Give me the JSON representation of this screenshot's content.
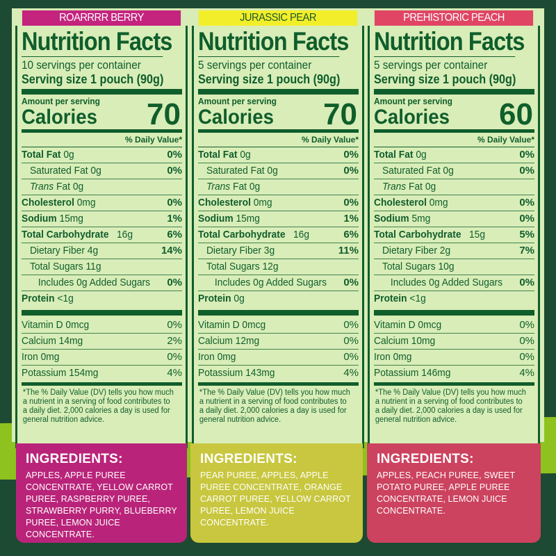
{
  "colors": {
    "background": "#1d4a32",
    "accent_lime": "#8ec21f",
    "label_bg": "#d9edb8",
    "label_text": "#0f5e2c"
  },
  "panels": [
    {
      "flavor": "ROARRRR BERRY",
      "flavor_bg": "#c4237e",
      "flavor_color": "#ffffff",
      "title": "Nutrition Facts",
      "servings": "10 servings per container",
      "serving_size": "Serving size 1 pouch (90g)",
      "amount_label": "Amount per serving",
      "calories_label": "Calories",
      "calories": "70",
      "dv_header": "% Daily Value*",
      "total_fat": {
        "label": "Total Fat",
        "amount": "0g",
        "dv": "0%"
      },
      "sat_fat": {
        "label": "Saturated Fat 0g",
        "dv": "0%"
      },
      "trans_fat": {
        "label_italic": "Trans",
        "label_rest": " Fat 0g"
      },
      "cholesterol": {
        "label": "Cholesterol",
        "amount": "0mg",
        "dv": "0%"
      },
      "sodium": {
        "label": "Sodium",
        "amount": "15mg",
        "dv": "1%"
      },
      "carbs": {
        "label": "Total Carbohydrate",
        "amount": "16g",
        "dv": "6%"
      },
      "fiber": {
        "label": "Dietary Fiber 4g",
        "dv": "14%"
      },
      "sugars": {
        "label": "Total Sugars 11g"
      },
      "added_sugars": {
        "label": "Includes 0g Added Sugars",
        "dv": "0%"
      },
      "protein": {
        "label": "Protein",
        "amount": "<1g"
      },
      "vitamin_d": {
        "label": "Vitamin D 0mcg",
        "dv": "0%"
      },
      "calcium": {
        "label": "Calcium 14mg",
        "dv": "2%"
      },
      "iron": {
        "label": "Iron 0mg",
        "dv": "0%"
      },
      "potassium": {
        "label": "Potassium 154mg",
        "dv": "4%"
      },
      "footnote": "*The % Daily Value (DV) tells you how much a nutrient in a serving of food contributes to a daily diet. 2,000 calories a day is used for general nutrition advice.",
      "ingredients_title": "INGREDIENTS:",
      "ingredients": "APPLES, APPLE PUREE CONCENTRATE, YELLOW CARROT PUREE, RASPBERRY PUREE, STRAWBERRY PURRY, BLUEBERRY PUREE, LEMON JUICE CONCENTRATE."
    },
    {
      "flavor": "JURASSIC PEAR",
      "flavor_bg": "#f3ee2a",
      "flavor_color": "#1d5a2a",
      "title": "Nutrition Facts",
      "servings": "5 servings per container",
      "serving_size": "Serving size 1 pouch (90g)",
      "amount_label": "Amount per serving",
      "calories_label": "Calories",
      "calories": "70",
      "dv_header": "% Daily Value*",
      "total_fat": {
        "label": "Total Fat",
        "amount": "0g",
        "dv": "0%"
      },
      "sat_fat": {
        "label": "Saturated Fat 0g",
        "dv": "0%"
      },
      "trans_fat": {
        "label_italic": "Trans",
        "label_rest": " Fat 0g"
      },
      "cholesterol": {
        "label": "Cholesterol",
        "amount": "0mg",
        "dv": "0%"
      },
      "sodium": {
        "label": "Sodium",
        "amount": "15mg",
        "dv": "1%"
      },
      "carbs": {
        "label": "Total Carbohydrate",
        "amount": "16g",
        "dv": "6%"
      },
      "fiber": {
        "label": "Dietary Fiber 3g",
        "dv": "11%"
      },
      "sugars": {
        "label": "Total Sugars 12g"
      },
      "added_sugars": {
        "label": "Includes 0g Added Sugars",
        "dv": "0%"
      },
      "protein": {
        "label": "Protein",
        "amount": "0g"
      },
      "vitamin_d": {
        "label": "Vitamin D 0mcg",
        "dv": "0%"
      },
      "calcium": {
        "label": "Calcium 12mg",
        "dv": "0%"
      },
      "iron": {
        "label": "Iron 0mg",
        "dv": "0%"
      },
      "potassium": {
        "label": "Potassium 143mg",
        "dv": "4%"
      },
      "footnote": "*The % Daily Value (DV) tells you how much a nutrient in a serving of food contributes to a daily diet. 2,000 calories a day is used for general nutrition advice.",
      "ingredients_title": "INGREDIENTS:",
      "ingredients": "PEAR PUREE, APPLES, APPLE PUREE CONCENTRATE, ORANGE CARROT PUREE, YELLOW CARROT PUREE, LEMON JUICE CONCENTRATE."
    },
    {
      "flavor": "PREHISTORIC PEACH",
      "flavor_bg": "#e04564",
      "flavor_color": "#ffffff",
      "title": "Nutrition Facts",
      "servings": "5 servings per container",
      "serving_size": "Serving size 1 pouch (90g)",
      "amount_label": "Amount per serving",
      "calories_label": "Calories",
      "calories": "60",
      "dv_header": "% Daily Value*",
      "total_fat": {
        "label": "Total Fat",
        "amount": "0g",
        "dv": "0%"
      },
      "sat_fat": {
        "label": "Saturated Fat 0g",
        "dv": "0%"
      },
      "trans_fat": {
        "label_italic": "Trans",
        "label_rest": " Fat 0g"
      },
      "cholesterol": {
        "label": "Cholesterol",
        "amount": "0mg",
        "dv": "0%"
      },
      "sodium": {
        "label": "Sodium",
        "amount": "5mg",
        "dv": "0%"
      },
      "carbs": {
        "label": "Total Carbohydrate",
        "amount": "15g",
        "dv": "5%"
      },
      "fiber": {
        "label": "Dietary Fiber 2g",
        "dv": "7%"
      },
      "sugars": {
        "label": "Total Sugars 10g"
      },
      "added_sugars": {
        "label": "Includes 0g Added Sugars",
        "dv": "0%"
      },
      "protein": {
        "label": "Protein",
        "amount": "<1g"
      },
      "vitamin_d": {
        "label": "Vitamin D 0mcg",
        "dv": "0%"
      },
      "calcium": {
        "label": "Calcium 10mg",
        "dv": "0%"
      },
      "iron": {
        "label": "Iron 0mg",
        "dv": "0%"
      },
      "potassium": {
        "label": "Potassium 146mg",
        "dv": "4%"
      },
      "footnote": "*The % Daily Value (DV) tells you how much a nutrient in a serving of food contributes to a daily diet. 2,000 calories a day is used for general nutrition advice.",
      "ingredients_title": "INGREDIENTS:",
      "ingredients": "APPLES, PEACH PUREE, SWEET POTATO PUREE, APPLE PUREE CONCENTRATE, LEMON JUICE CONCENTRATE."
    }
  ]
}
